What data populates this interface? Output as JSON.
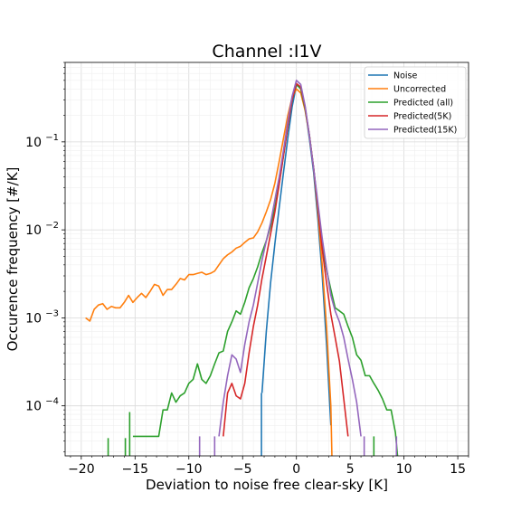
{
  "chart_data": {
    "type": "line",
    "title": "Channel :I1V",
    "xlabel": "Deviation to noise free clear-sky [K]",
    "ylabel": "Occurence frequency [#/K]",
    "xlim": [
      -21.5,
      16
    ],
    "ylim": [
      2.7e-05,
      0.8
    ],
    "yscale": "log",
    "grid": "major and minor, light gray",
    "legend_position": "top-right",
    "x_ticks": [
      -20,
      -15,
      -10,
      -5,
      0,
      5,
      10,
      15
    ],
    "x_tick_labels": [
      "−20",
      "−15",
      "−10",
      "−5",
      "0",
      "5",
      "10",
      "15"
    ],
    "y_ticks": [
      {
        "value": 0.1,
        "base": "10",
        "exp": "−1"
      },
      {
        "value": 0.01,
        "base": "10",
        "exp": "−2"
      },
      {
        "value": 0.001,
        "base": "10",
        "exp": "−3"
      },
      {
        "value": 0.0001,
        "base": "10",
        "exp": "−4"
      }
    ],
    "series": [
      {
        "name": "Noise",
        "color": "#1f77b4",
        "points": [
          [
            -3.2,
            0.00014
          ],
          [
            -2.8,
            0.0007
          ],
          [
            -2.4,
            0.0025
          ],
          [
            -2.0,
            0.007
          ],
          [
            -1.6,
            0.018
          ],
          [
            -1.2,
            0.045
          ],
          [
            -0.8,
            0.11
          ],
          [
            -0.4,
            0.25
          ],
          [
            0.0,
            0.44
          ],
          [
            0.4,
            0.42
          ],
          [
            0.8,
            0.25
          ],
          [
            1.2,
            0.11
          ],
          [
            1.6,
            0.045
          ],
          [
            2.0,
            0.013
          ],
          [
            2.4,
            0.003
          ],
          [
            2.8,
            0.0005
          ],
          [
            3.2,
            6e-05
          ]
        ]
      },
      {
        "name": "Uncorrected",
        "color": "#ff7f0e",
        "points": [
          [
            -19.6,
            0.001
          ],
          [
            -19.2,
            0.00092
          ],
          [
            -18.8,
            0.00125
          ],
          [
            -18.4,
            0.0014
          ],
          [
            -18.0,
            0.00145
          ],
          [
            -17.6,
            0.00125
          ],
          [
            -17.2,
            0.00135
          ],
          [
            -16.8,
            0.0013
          ],
          [
            -16.4,
            0.0013
          ],
          [
            -16.0,
            0.0015
          ],
          [
            -15.6,
            0.0018
          ],
          [
            -15.2,
            0.0015
          ],
          [
            -14.8,
            0.0017
          ],
          [
            -14.4,
            0.0019
          ],
          [
            -14.0,
            0.0017
          ],
          [
            -13.6,
            0.002
          ],
          [
            -13.2,
            0.0024
          ],
          [
            -12.8,
            0.0023
          ],
          [
            -12.4,
            0.0018
          ],
          [
            -12.0,
            0.0021
          ],
          [
            -11.6,
            0.0021
          ],
          [
            -11.2,
            0.0024
          ],
          [
            -10.8,
            0.0028
          ],
          [
            -10.4,
            0.0027
          ],
          [
            -10.0,
            0.0031
          ],
          [
            -9.6,
            0.0031
          ],
          [
            -9.2,
            0.0032
          ],
          [
            -8.8,
            0.0033
          ],
          [
            -8.4,
            0.0031
          ],
          [
            -8.0,
            0.0032
          ],
          [
            -7.6,
            0.0034
          ],
          [
            -7.2,
            0.004
          ],
          [
            -6.8,
            0.0047
          ],
          [
            -6.4,
            0.0052
          ],
          [
            -6.0,
            0.0056
          ],
          [
            -5.6,
            0.0062
          ],
          [
            -5.2,
            0.0065
          ],
          [
            -4.8,
            0.0072
          ],
          [
            -4.4,
            0.0079
          ],
          [
            -4.0,
            0.0081
          ],
          [
            -3.6,
            0.0095
          ],
          [
            -3.2,
            0.012
          ],
          [
            -2.8,
            0.016
          ],
          [
            -2.4,
            0.022
          ],
          [
            -2.0,
            0.034
          ],
          [
            -1.6,
            0.06
          ],
          [
            -1.2,
            0.11
          ],
          [
            -0.8,
            0.2
          ],
          [
            -0.4,
            0.32
          ],
          [
            0.0,
            0.4
          ],
          [
            0.4,
            0.36
          ],
          [
            0.8,
            0.23
          ],
          [
            1.2,
            0.12
          ],
          [
            1.6,
            0.05
          ],
          [
            2.0,
            0.016
          ],
          [
            2.4,
            0.004
          ],
          [
            2.8,
            0.0008
          ],
          [
            3.2,
            0.0001
          ],
          [
            3.3,
            2.7e-05
          ]
        ]
      },
      {
        "name": "Predicted (all)",
        "color": "#2ca02c",
        "points": [
          [
            -15.2,
            4.5e-05
          ],
          [
            -14.4,
            4.5e-05
          ],
          [
            -13.6,
            4.5e-05
          ],
          [
            -12.8,
            4.5e-05
          ],
          [
            -12.4,
            9e-05
          ],
          [
            -12.0,
            9e-05
          ],
          [
            -11.6,
            0.00014
          ],
          [
            -11.2,
            0.00011
          ],
          [
            -10.8,
            0.00013
          ],
          [
            -10.4,
            0.00014
          ],
          [
            -10.0,
            0.00018
          ],
          [
            -9.6,
            0.0002
          ],
          [
            -9.2,
            0.0003
          ],
          [
            -8.8,
            0.0002
          ],
          [
            -8.4,
            0.00018
          ],
          [
            -8.0,
            0.00022
          ],
          [
            -7.6,
            0.0003
          ],
          [
            -7.2,
            0.0004
          ],
          [
            -6.8,
            0.00042
          ],
          [
            -6.4,
            0.0007
          ],
          [
            -6.0,
            0.0009
          ],
          [
            -5.6,
            0.0012
          ],
          [
            -5.2,
            0.0011
          ],
          [
            -4.8,
            0.0015
          ],
          [
            -4.4,
            0.0022
          ],
          [
            -4.0,
            0.0028
          ],
          [
            -3.6,
            0.0038
          ],
          [
            -3.2,
            0.0055
          ],
          [
            -2.8,
            0.0075
          ],
          [
            -2.4,
            0.011
          ],
          [
            -2.0,
            0.018
          ],
          [
            -1.6,
            0.034
          ],
          [
            -1.2,
            0.07
          ],
          [
            -0.8,
            0.15
          ],
          [
            -0.4,
            0.3
          ],
          [
            0.0,
            0.45
          ],
          [
            0.4,
            0.4
          ],
          [
            0.8,
            0.24
          ],
          [
            1.2,
            0.12
          ],
          [
            1.6,
            0.05
          ],
          [
            2.0,
            0.018
          ],
          [
            2.4,
            0.0065
          ],
          [
            2.8,
            0.0035
          ],
          [
            3.2,
            0.0021
          ],
          [
            3.6,
            0.0013
          ],
          [
            4.0,
            0.0012
          ],
          [
            4.4,
            0.0011
          ],
          [
            4.8,
            0.0008
          ],
          [
            5.2,
            0.0006
          ],
          [
            5.6,
            0.00038
          ],
          [
            6.0,
            0.00033
          ],
          [
            6.4,
            0.00022
          ],
          [
            6.8,
            0.00022
          ],
          [
            7.2,
            0.00018
          ],
          [
            7.6,
            0.00015
          ],
          [
            8.0,
            0.00012
          ],
          [
            8.4,
            9e-05
          ],
          [
            8.8,
            9e-05
          ],
          [
            9.2,
            5e-05
          ],
          [
            9.4,
            2.7e-05
          ]
        ]
      },
      {
        "name": "Predicted(5K)",
        "color": "#d62728",
        "points": [
          [
            -6.8,
            4.5e-05
          ],
          [
            -6.4,
            0.00014
          ],
          [
            -6.0,
            0.00018
          ],
          [
            -5.6,
            0.00013
          ],
          [
            -5.2,
            0.00012
          ],
          [
            -4.8,
            0.00018
          ],
          [
            -4.4,
            0.0004
          ],
          [
            -4.0,
            0.0008
          ],
          [
            -3.6,
            0.0014
          ],
          [
            -3.2,
            0.0028
          ],
          [
            -2.8,
            0.005
          ],
          [
            -2.4,
            0.009
          ],
          [
            -2.0,
            0.016
          ],
          [
            -1.6,
            0.033
          ],
          [
            -1.2,
            0.07
          ],
          [
            -0.8,
            0.15
          ],
          [
            -0.4,
            0.3
          ],
          [
            0.0,
            0.46
          ],
          [
            0.4,
            0.42
          ],
          [
            0.8,
            0.25
          ],
          [
            1.2,
            0.12
          ],
          [
            1.6,
            0.05
          ],
          [
            2.0,
            0.018
          ],
          [
            2.4,
            0.006
          ],
          [
            2.8,
            0.0025
          ],
          [
            3.2,
            0.0011
          ],
          [
            3.6,
            0.0006
          ],
          [
            4.0,
            0.00032
          ],
          [
            4.4,
            0.00012
          ],
          [
            4.8,
            4.5e-05
          ]
        ]
      },
      {
        "name": "Predicted(15K)",
        "color": "#9467bd",
        "points": [
          [
            -7.2,
            4.5e-05
          ],
          [
            -6.8,
            0.00011
          ],
          [
            -6.4,
            0.00022
          ],
          [
            -6.0,
            0.00038
          ],
          [
            -5.6,
            0.00034
          ],
          [
            -5.2,
            0.00024
          ],
          [
            -4.8,
            0.0005
          ],
          [
            -4.4,
            0.0009
          ],
          [
            -4.0,
            0.0014
          ],
          [
            -3.6,
            0.0025
          ],
          [
            -3.2,
            0.0045
          ],
          [
            -2.8,
            0.0075
          ],
          [
            -2.4,
            0.012
          ],
          [
            -2.0,
            0.022
          ],
          [
            -1.6,
            0.04
          ],
          [
            -1.2,
            0.08
          ],
          [
            -0.8,
            0.17
          ],
          [
            -0.4,
            0.33
          ],
          [
            0.0,
            0.5
          ],
          [
            0.4,
            0.45
          ],
          [
            0.8,
            0.26
          ],
          [
            1.2,
            0.12
          ],
          [
            1.6,
            0.05
          ],
          [
            2.0,
            0.02
          ],
          [
            2.4,
            0.008
          ],
          [
            2.8,
            0.0037
          ],
          [
            3.2,
            0.0018
          ],
          [
            3.6,
            0.0012
          ],
          [
            4.0,
            0.0009
          ],
          [
            4.4,
            0.0006
          ],
          [
            4.8,
            0.00034
          ],
          [
            5.2,
            0.0002
          ],
          [
            5.6,
            0.00011
          ],
          [
            6.0,
            4.5e-05
          ]
        ]
      }
    ],
    "spikes": [
      {
        "x": -17.5,
        "top": 4.3e-05,
        "color": "#2ca02c"
      },
      {
        "x": -15.9,
        "top": 4.3e-05,
        "color": "#2ca02c"
      },
      {
        "x": -15.5,
        "top": 8.5e-05,
        "color": "#2ca02c"
      },
      {
        "x": -9.0,
        "top": 4.5e-05,
        "color": "#9467bd"
      },
      {
        "x": -7.6,
        "top": 4.5e-05,
        "color": "#9467bd"
      },
      {
        "x": 6.3,
        "top": 4.5e-05,
        "color": "#9467bd"
      },
      {
        "x": 9.3,
        "top": 4.5e-05,
        "color": "#9467bd"
      },
      {
        "x": -3.25,
        "top": 0.00014,
        "color": "#1f77b4"
      },
      {
        "x": 7.2,
        "top": 4.5e-05,
        "color": "#2ca02c"
      }
    ]
  }
}
